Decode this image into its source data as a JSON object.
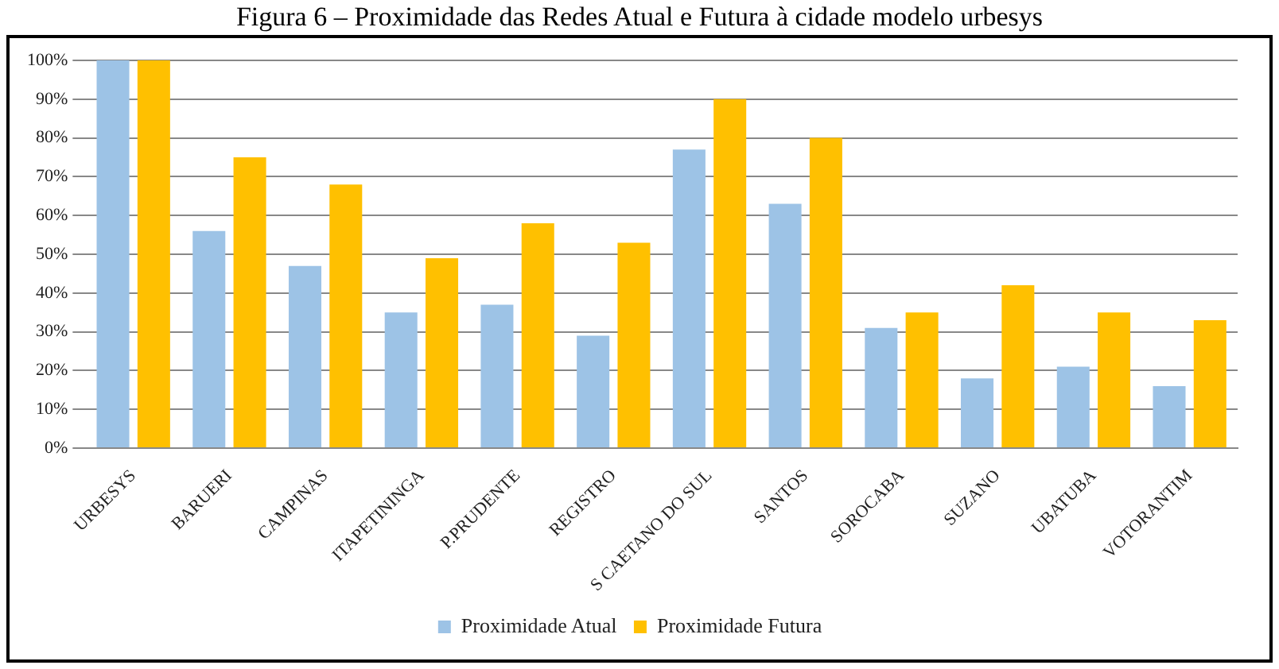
{
  "chart_data": {
    "type": "bar",
    "title": "Figura 6 – Proximidade das Redes Atual e Futura à cidade modelo urbesys",
    "categories": [
      "URBESYS",
      "BARUERI",
      "CAMPINAS",
      "ITAPETININGA",
      "P.PRUDENTE",
      "REGISTRO",
      "S CAETANO DO SUL",
      "SANTOS",
      "SOROCABA",
      "SUZANO",
      "UBATUBA",
      "VOTORANTIM"
    ],
    "series": [
      {
        "name": "Proximidade Atual",
        "color": "#9dc3e6",
        "values": [
          100,
          56,
          47,
          35,
          37,
          29,
          77,
          63,
          31,
          18,
          21,
          16
        ]
      },
      {
        "name": "Proximidade Futura",
        "color": "#ffc000",
        "values": [
          100,
          75,
          68,
          49,
          58,
          53,
          90,
          80,
          35,
          42,
          35,
          33
        ]
      }
    ],
    "ylim": [
      0,
      100
    ],
    "yticks": [
      {
        "value": 0,
        "label": "0%"
      },
      {
        "value": 10,
        "label": "10%"
      },
      {
        "value": 20,
        "label": "20%"
      },
      {
        "value": 30,
        "label": "30%"
      },
      {
        "value": 40,
        "label": "40%"
      },
      {
        "value": 50,
        "label": "50%"
      },
      {
        "value": 60,
        "label": "60%"
      },
      {
        "value": 70,
        "label": "70%"
      },
      {
        "value": 80,
        "label": "80%"
      },
      {
        "value": 90,
        "label": "90%"
      },
      {
        "value": 100,
        "label": "100%"
      }
    ],
    "grid": "y",
    "legend": "bottom"
  }
}
